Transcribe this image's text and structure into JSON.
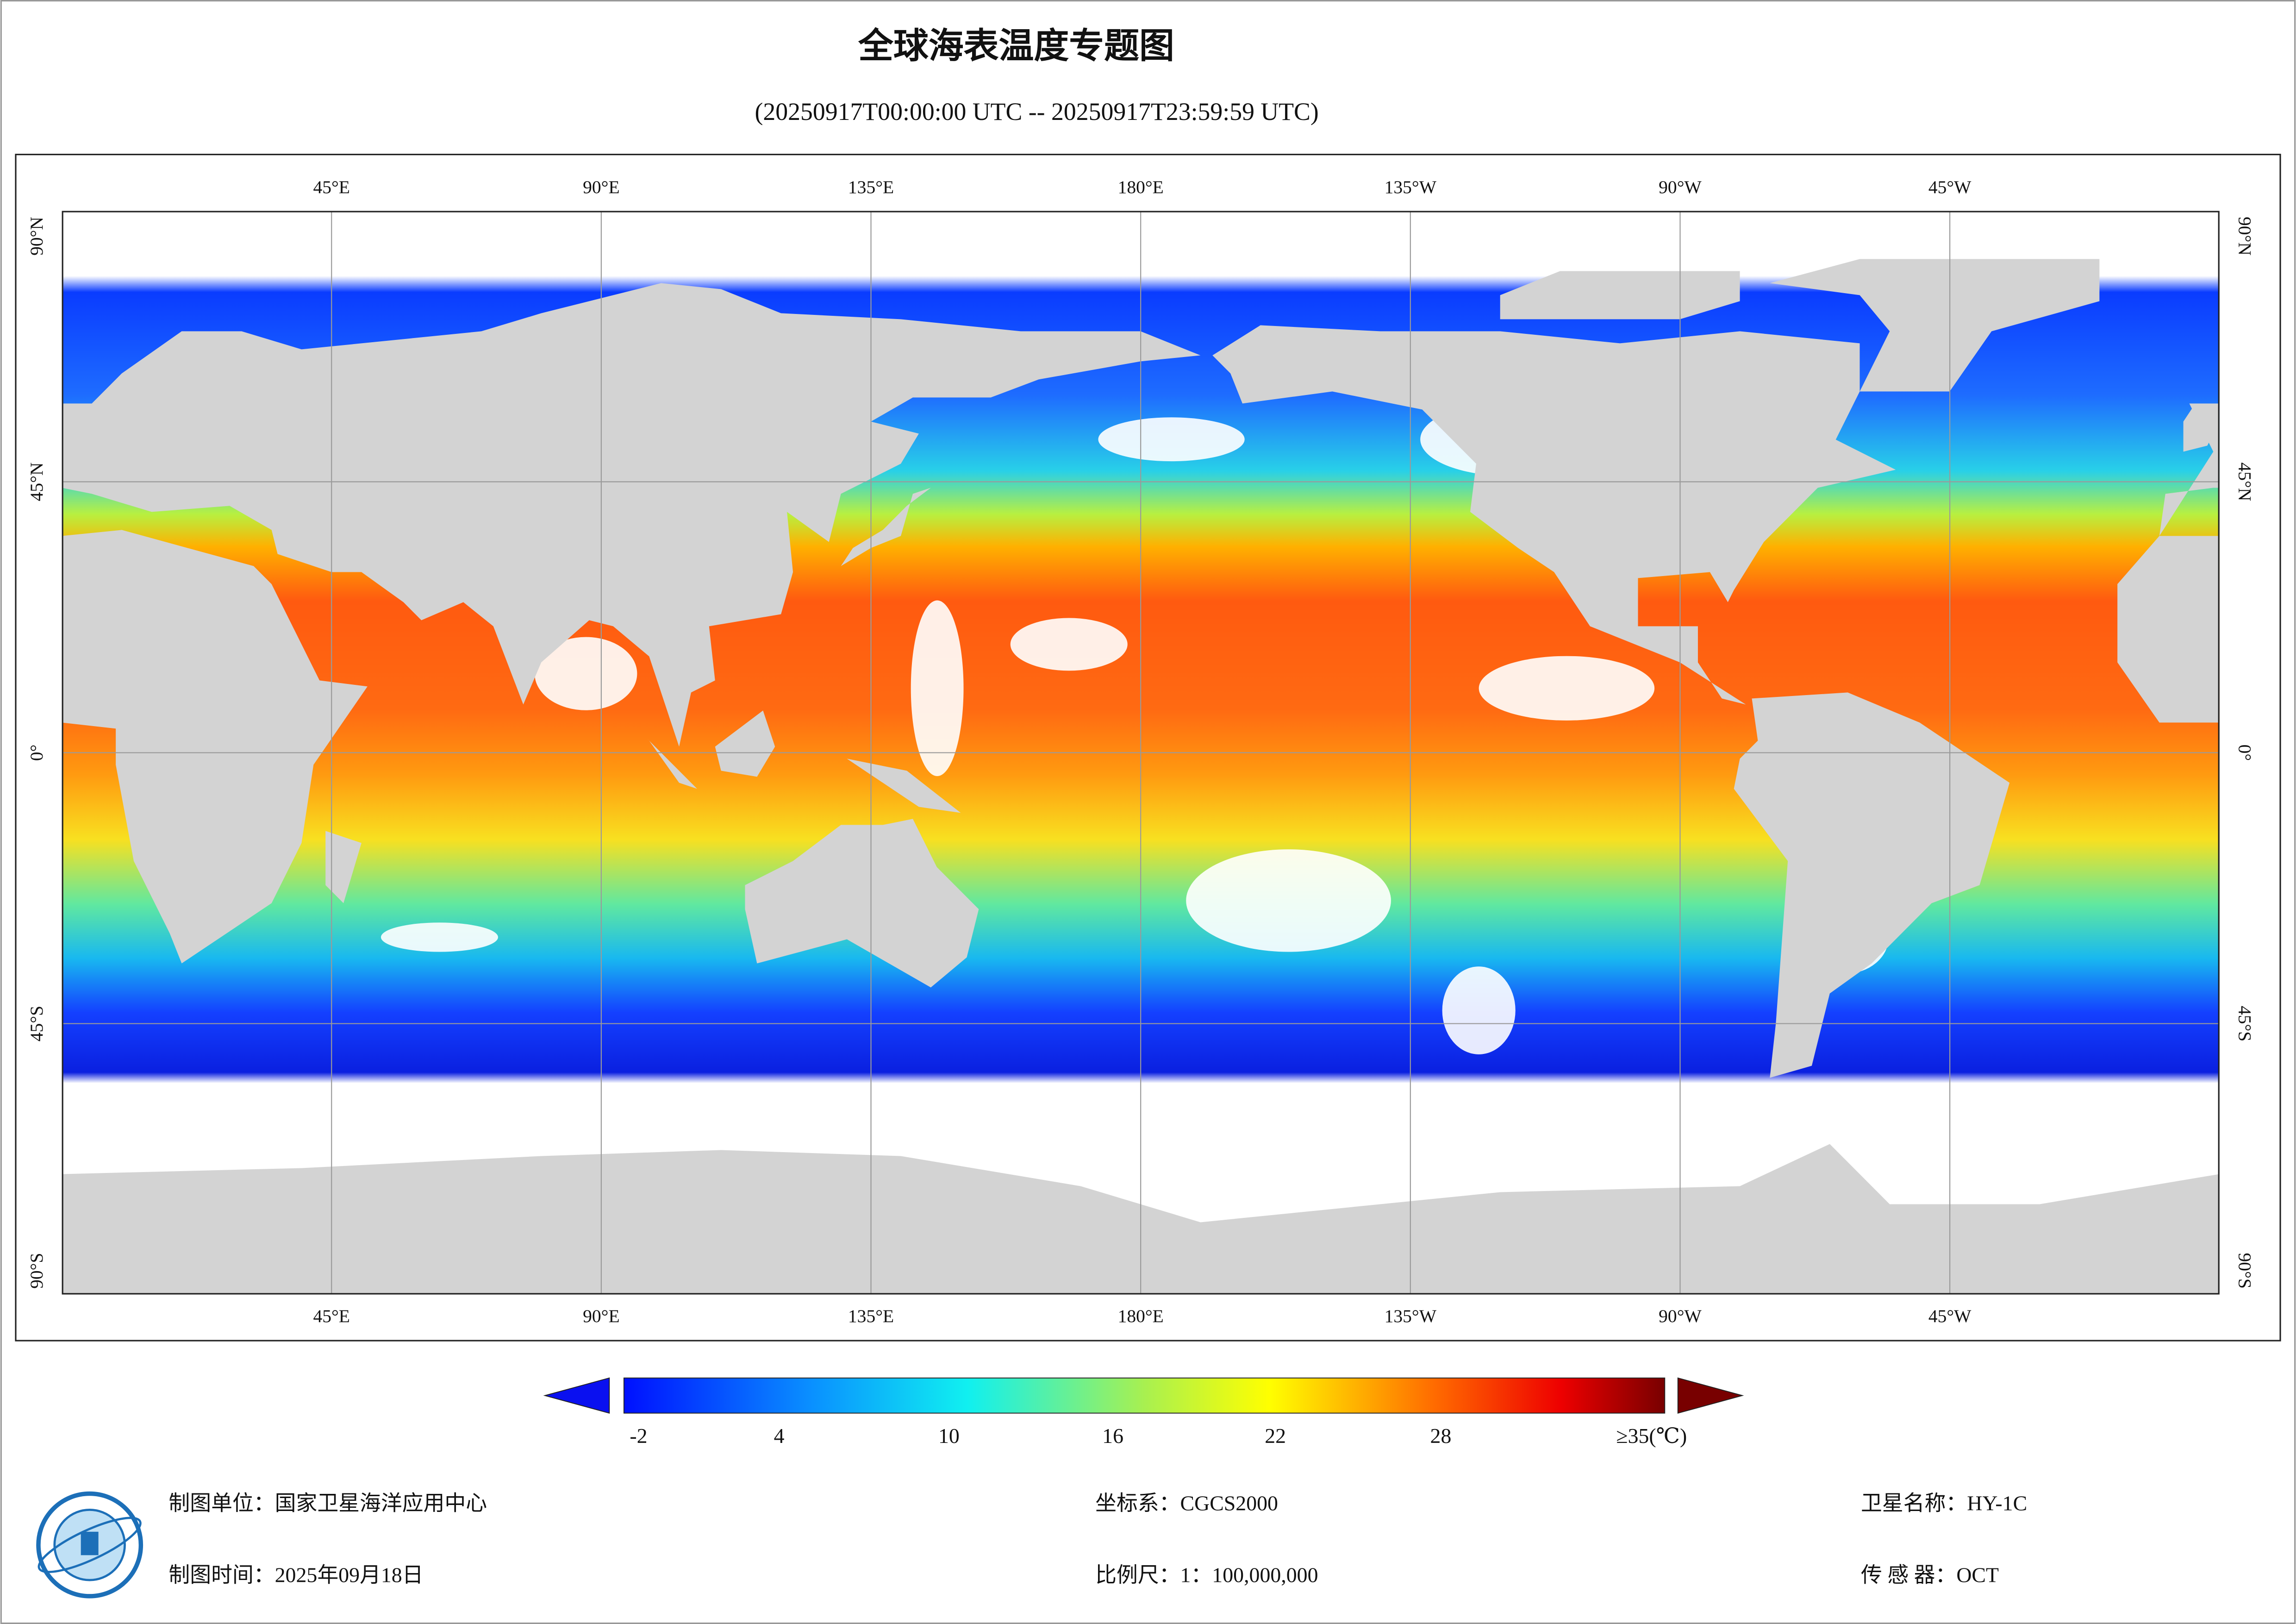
{
  "header": {
    "title": "全球海表温度专题图",
    "subtitle": "(20250917T00:00:00 UTC -- 20250917T23:59:59 UTC)"
  },
  "map": {
    "lon_labels": [
      "45°E",
      "90°E",
      "135°E",
      "180°E",
      "135°W",
      "90°W",
      "45°W"
    ],
    "lat_labels": [
      "90°N",
      "45°N",
      "0°",
      "45°S",
      "90°S"
    ]
  },
  "colorbar": {
    "ticks": [
      "-2",
      "4",
      "10",
      "16",
      "22",
      "28",
      "≥35(℃)"
    ]
  },
  "footer": {
    "producer": "制图单位：国家卫星海洋应用中心",
    "date": "制图时间：2025年09月18日",
    "crs": "坐标系：CGCS2000",
    "scale": "比例尺：1：100,000,000",
    "satellite": "卫星名称：HY-1C",
    "sensor": "传 感 器：OCT"
  }
}
